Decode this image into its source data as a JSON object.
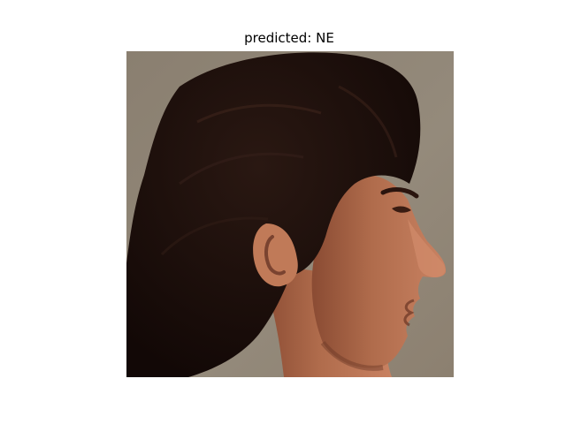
{
  "figure": {
    "title": "predicted: NE"
  },
  "image": {
    "subject": "side-profile-face-photo",
    "colors": {
      "background": "#8c8272",
      "hair": "#1e100c",
      "skin": "#b87452",
      "skin_shadow": "#7a4330",
      "ear": "#c07a58"
    }
  }
}
